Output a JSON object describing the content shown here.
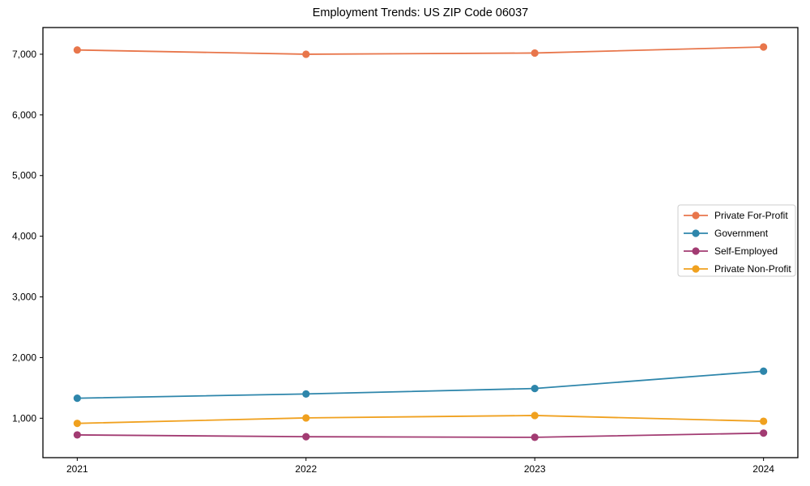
{
  "figure": {
    "background": "#ffffff",
    "axis_color": "#000000"
  },
  "chart_data": {
    "type": "line",
    "title": "Employment Trends: US ZIP Code 06037",
    "xlabel": "",
    "ylabel": "",
    "grid": false,
    "x": [
      2021,
      2022,
      2023,
      2024
    ],
    "x_tick_labels": [
      "2021",
      "2022",
      "2023",
      "2024"
    ],
    "xlim": [
      2020.85,
      2024.15
    ],
    "yticks": [
      1000,
      2000,
      3000,
      4000,
      5000,
      6000,
      7000
    ],
    "ytick_labels": [
      "1,000",
      "2,000",
      "3,000",
      "4,000",
      "5,000",
      "6,000",
      "7,000"
    ],
    "ylim": [
      350,
      7440
    ],
    "series": [
      {
        "name": "Private For-Profit",
        "color": "#E8764B",
        "values": [
          7070,
          7000,
          7020,
          7120
        ]
      },
      {
        "name": "Government",
        "color": "#2E86AB",
        "values": [
          1330,
          1400,
          1490,
          1775
        ]
      },
      {
        "name": "Self-Employed",
        "color": "#A23B72",
        "values": [
          725,
          695,
          685,
          755
        ]
      },
      {
        "name": "Private Non-Profit",
        "color": "#F0A11F",
        "values": [
          915,
          1005,
          1045,
          950
        ]
      }
    ],
    "legend": {
      "position": "center-right",
      "border_color": "#cccccc",
      "background": "#ffffff",
      "entries": [
        "Private For-Profit",
        "Government",
        "Self-Employed",
        "Private Non-Profit"
      ]
    }
  }
}
